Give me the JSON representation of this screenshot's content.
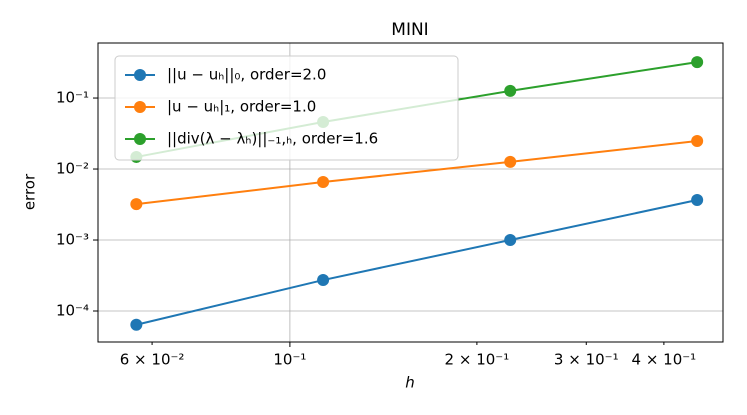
{
  "chart_data": {
    "type": "line",
    "title": "MINI",
    "xlabel": "h",
    "ylabel": "error",
    "x": [
      0.0566,
      0.1131,
      0.2263,
      0.4525
    ],
    "series": [
      {
        "name": "||u − uₕ||₀, order=2.0",
        "color": "#1f77b4",
        "values": [
          6.4e-05,
          0.000273,
          0.001,
          0.00366
        ]
      },
      {
        "name": "|u − uₕ|₁, order=1.0",
        "color": "#ff7f0e",
        "values": [
          0.0032,
          0.00656,
          0.0126,
          0.0248
        ]
      },
      {
        "name": "||div(λ − λₕ)||₋₁,ₕ, order=1.6",
        "color": "#2ca02c",
        "values": [
          0.0148,
          0.046,
          0.126,
          0.321
        ]
      }
    ],
    "xscale": "log",
    "yscale": "log",
    "xlim": [
      0.0491,
      0.498
    ],
    "ylim": [
      3.66e-05,
      0.596
    ],
    "xticks": [
      {
        "value": 0.1,
        "label": "10⁻¹"
      }
    ],
    "xminorticks": [
      {
        "value": 0.06,
        "label": "6 × 10⁻²"
      },
      {
        "value": 0.2,
        "label": "2 × 10⁻¹"
      },
      {
        "value": 0.3,
        "label": "3 × 10⁻¹"
      },
      {
        "value": 0.4,
        "label": "4 × 10⁻¹"
      }
    ],
    "yticks": [
      {
        "value": 0.0001,
        "label": "10⁻⁴"
      },
      {
        "value": 0.001,
        "label": "10⁻³"
      },
      {
        "value": 0.01,
        "label": "10⁻²"
      },
      {
        "value": 0.1,
        "label": "10⁻¹"
      }
    ],
    "grid": true,
    "legend": "upper left"
  }
}
